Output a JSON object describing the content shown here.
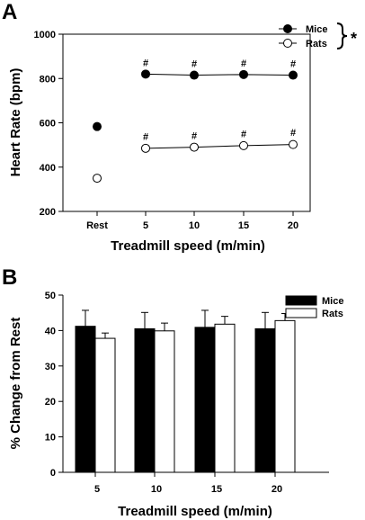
{
  "chart_data": [
    {
      "panel_label": "A",
      "type": "line",
      "categories": [
        "Rest",
        "5",
        "10",
        "15",
        "20"
      ],
      "series": [
        {
          "name": "Mice",
          "marker": "filled-circle",
          "values": [
            583,
            820,
            815,
            818,
            815
          ],
          "error": [
            12,
            4,
            4,
            4,
            4
          ]
        },
        {
          "name": "Rats",
          "marker": "open-circle",
          "values": [
            350,
            485,
            490,
            497,
            502
          ],
          "error": [
            6,
            5,
            5,
            5,
            6
          ]
        }
      ],
      "significance": {
        "symbol": "#",
        "categories": [
          "5",
          "10",
          "15",
          "20"
        ]
      },
      "group_significance": "*",
      "xlabel": "Treadmill speed (m/min)",
      "ylabel": "Heart Rate (bpm)",
      "ylim": [
        200,
        1000
      ],
      "yticks": [
        "200",
        "400",
        "600",
        "800",
        "1000"
      ],
      "legend": "top-right",
      "grid": false
    },
    {
      "panel_label": "B",
      "type": "bar",
      "categories": [
        "5",
        "10",
        "15",
        "20"
      ],
      "series": [
        {
          "name": "Mice",
          "color": "#000000",
          "values": [
            41.2,
            40.5,
            40.9,
            40.5
          ],
          "error": [
            4.5,
            4.6,
            4.8,
            4.6
          ]
        },
        {
          "name": "Rats",
          "color": "#ffffff",
          "values": [
            37.8,
            39.9,
            41.8,
            42.8
          ],
          "error": [
            1.5,
            2.2,
            2.2,
            2.0
          ]
        }
      ],
      "xlabel": "Treadmill speed (m/min)",
      "ylabel": "% Change from Rest",
      "ylim": [
        0,
        50
      ],
      "yticks": [
        "0",
        "10",
        "20",
        "30",
        "40",
        "50"
      ],
      "legend": "top-right",
      "grid": false
    }
  ]
}
